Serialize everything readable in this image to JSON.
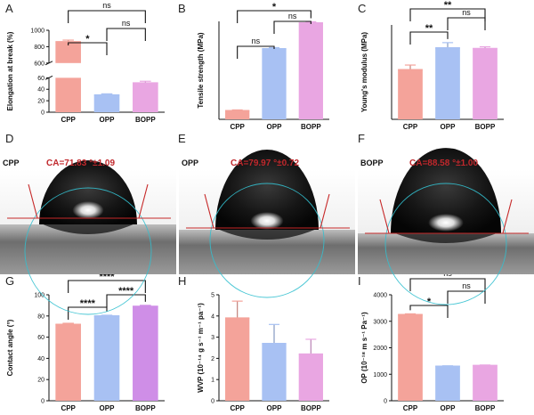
{
  "figure": {
    "colors": {
      "CPP": "#f4a39a",
      "OPP": "#a8c1f3",
      "BOPP": "#e9a6e2",
      "BOPP_G": "#cf8ee7",
      "contact_line": "#c62828",
      "circle_fit": "#33c0cf"
    },
    "photos": [
      {
        "letter": "D",
        "sample": "CPP",
        "ca_text": "CA=71.83 °±1.09"
      },
      {
        "letter": "E",
        "sample": "OPP",
        "ca_text": "CA=79.97 °±0.72"
      },
      {
        "letter": "F",
        "sample": "BOPP",
        "ca_text": "CA=88.58 °±1.00"
      }
    ]
  },
  "chart_data": [
    {
      "letter": "A",
      "type": "bar",
      "categories": [
        "CPP",
        "OPP",
        "BOPP"
      ],
      "values": [
        860,
        30,
        51
      ],
      "errors": [
        20,
        2,
        3
      ],
      "ylabel": "Elongation at break (%)",
      "broken_axis": true,
      "ylim_low": [
        0,
        60
      ],
      "ylim_high": [
        600,
        1000
      ],
      "yticks_low": [
        0,
        20,
        40,
        60
      ],
      "yticks_high": [
        600,
        800,
        1000
      ],
      "comparisons": [
        {
          "from": 0,
          "to": 1,
          "label": "*"
        },
        {
          "from": 1,
          "to": 2,
          "label": "ns"
        },
        {
          "from": 0,
          "to": 2,
          "label": "ns"
        }
      ]
    },
    {
      "letter": "B",
      "type": "bar",
      "categories": [
        "CPP",
        "OPP",
        "BOPP"
      ],
      "values": [
        22,
        180,
        246
      ],
      "errors": [
        2,
        3,
        3
      ],
      "ylabel": "Tensile strength (MPa)",
      "ylim": [
        0,
        250
      ],
      "yticks": [],
      "comparisons": [
        {
          "from": 0,
          "to": 1,
          "label": "ns"
        },
        {
          "from": 1,
          "to": 2,
          "label": "ns"
        },
        {
          "from": 0,
          "to": 2,
          "label": "*"
        }
      ]
    },
    {
      "letter": "C",
      "type": "bar",
      "categories": [
        "CPP",
        "OPP",
        "BOPP"
      ],
      "values": [
        420,
        605,
        600
      ],
      "errors": [
        40,
        45,
        15
      ],
      "ylabel": "Young's modulus (MPa)",
      "ylim": [
        0,
        800
      ],
      "yticks": [],
      "comparisons": [
        {
          "from": 0,
          "to": 1,
          "label": "**"
        },
        {
          "from": 1,
          "to": 2,
          "label": "ns"
        },
        {
          "from": 0,
          "to": 2,
          "label": "**"
        }
      ]
    },
    {
      "letter": "G",
      "type": "bar",
      "categories": [
        "CPP",
        "OPP",
        "BOPP"
      ],
      "values": [
        72,
        80,
        89
      ],
      "errors": [
        1.1,
        0.7,
        1.0
      ],
      "ylabel": "Contact angle (°)",
      "ylim": [
        0,
        100
      ],
      "yticks": [
        0,
        20,
        40,
        60,
        80,
        100
      ],
      "comparisons": [
        {
          "from": 0,
          "to": 1,
          "label": "****"
        },
        {
          "from": 1,
          "to": 2,
          "label": "****"
        },
        {
          "from": 0,
          "to": 2,
          "label": "****"
        }
      ]
    },
    {
      "letter": "H",
      "type": "bar",
      "categories": [
        "CPP",
        "OPP",
        "BOPP"
      ],
      "values": [
        3.9,
        2.7,
        2.2
      ],
      "errors": [
        0.8,
        0.9,
        0.7
      ],
      "ylabel": "WVP (10⁻¹⁴ g s⁻¹ m⁻¹ pa⁻¹)",
      "ylim": [
        0,
        5
      ],
      "yticks": [
        0,
        1,
        2,
        3,
        4,
        5
      ],
      "comparisons": []
    },
    {
      "letter": "I",
      "type": "bar",
      "categories": [
        "CPP",
        "OPP",
        "BOPP"
      ],
      "values": [
        3250,
        1300,
        1330
      ],
      "errors": [
        30,
        20,
        20
      ],
      "ylabel": "OP (10⁻¹⁸ m s⁻¹ Pa⁻¹)",
      "ylim": [
        0,
        4000
      ],
      "yticks": [
        0,
        1000,
        2000,
        3000,
        4000
      ],
      "comparisons": [
        {
          "from": 0,
          "to": 1,
          "label": "*"
        },
        {
          "from": 1,
          "to": 2,
          "label": "ns"
        },
        {
          "from": 0,
          "to": 2,
          "label": "ns"
        }
      ]
    }
  ]
}
